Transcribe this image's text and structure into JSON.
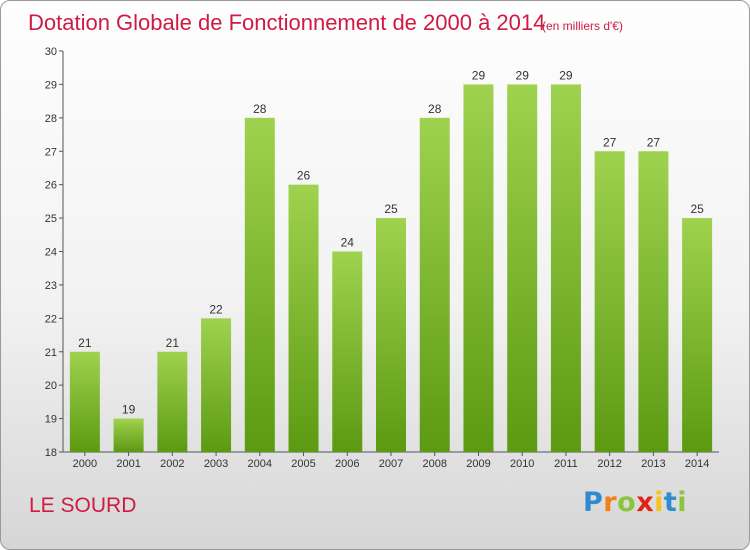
{
  "title": "Dotation Globale de Fonctionnement de 2000 à 2014",
  "unit": "(en milliers d'€)",
  "commune": "LE SOURD",
  "logo": {
    "text": "Proxiti",
    "letters": [
      {
        "ch": "P",
        "color": "#2e8bd0"
      },
      {
        "ch": "r",
        "color": "#f07f1c"
      },
      {
        "ch": "o",
        "color": "#8bc53f"
      },
      {
        "ch": "x",
        "color": "#e2231a"
      },
      {
        "ch": "i",
        "color": "#f7c31a"
      },
      {
        "ch": "t",
        "color": "#2e8bd0"
      },
      {
        "ch": "i",
        "color": "#8bc53f"
      }
    ]
  },
  "colors": {
    "title": "#cf1b44",
    "bar_light": "#9fd24f",
    "bar_dark": "#5c9a12"
  },
  "chart_data": {
    "type": "bar",
    "categories": [
      "2000",
      "2001",
      "2002",
      "2003",
      "2004",
      "2005",
      "2006",
      "2007",
      "2008",
      "2009",
      "2010",
      "2011",
      "2012",
      "2013",
      "2014"
    ],
    "values": [
      21,
      19,
      21,
      22,
      28,
      26,
      24,
      25,
      28,
      29,
      29,
      29,
      27,
      27,
      25
    ],
    "title": "Dotation Globale de Fonctionnement de 2000 à 2014",
    "ylim": [
      18,
      30
    ],
    "yticks": [
      18,
      19,
      20,
      21,
      22,
      23,
      24,
      25,
      26,
      27,
      28,
      29,
      30
    ],
    "grid": false,
    "legend": "none"
  }
}
